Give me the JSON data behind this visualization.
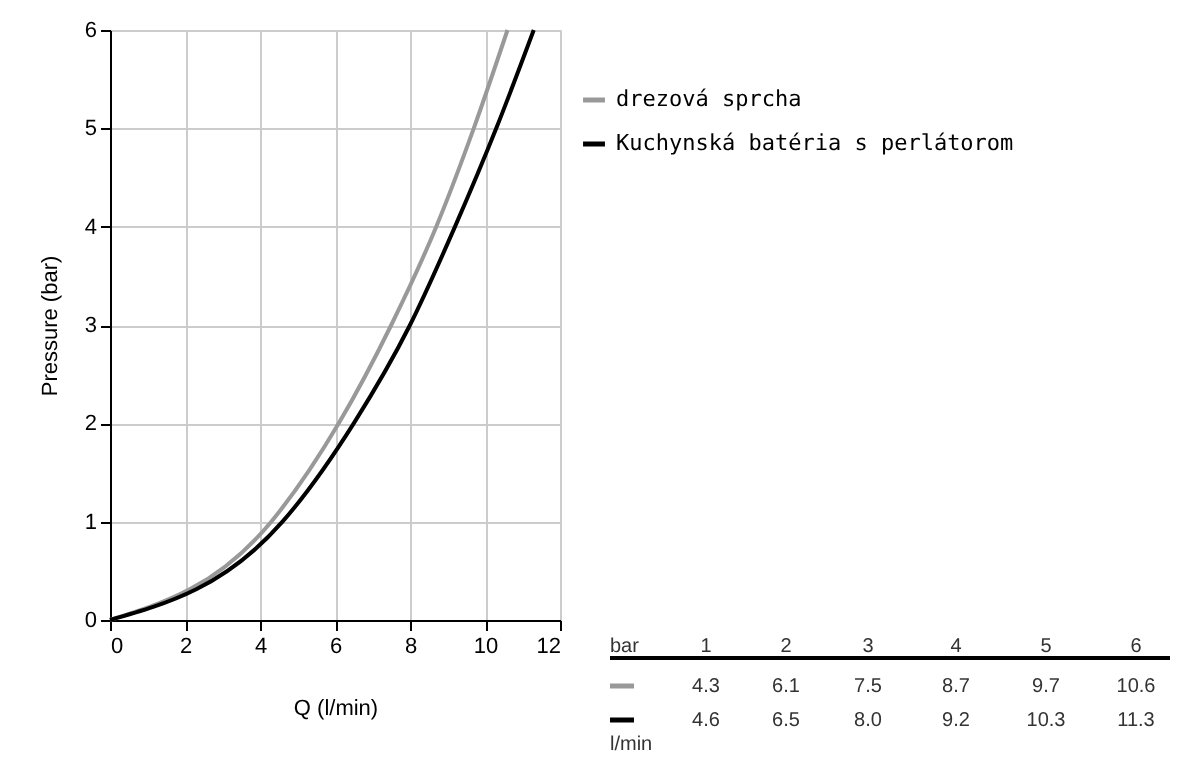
{
  "chart_data": {
    "type": "line",
    "xlabel": "Q (l/min)",
    "ylabel": "Pressure (bar)",
    "xlim": [
      0,
      12
    ],
    "ylim": [
      0,
      6
    ],
    "xticks": [
      0,
      2,
      4,
      6,
      8,
      10,
      12
    ],
    "yticks": [
      0,
      1,
      2,
      3,
      4,
      5,
      6
    ],
    "grid": true,
    "legend": "top right",
    "line_style": "solid",
    "marker": "none",
    "annotations": [
      "bar",
      "1",
      "2",
      "3",
      "4",
      "5",
      "6",
      "4.3",
      "6.1",
      "7.5",
      "8.7",
      "9.7",
      "10.6",
      "4.6",
      "6.5",
      "8.0",
      "9.2",
      "10.3",
      "11.3",
      "l/min"
    ],
    "series": [
      {
        "name": "drezová sprcha",
        "color": "#999999",
        "x": [
          0,
          4.3,
          6.1,
          7.5,
          8.7,
          9.7,
          10.6
        ],
        "values": [
          0,
          1,
          2,
          3,
          4,
          5,
          6
        ]
      },
      {
        "name": "Kuchynská batéria s perlátorom",
        "color": "#000000",
        "x": [
          0,
          4.6,
          6.5,
          8.0,
          9.2,
          10.3,
          11.3
        ],
        "values": [
          0,
          1,
          2,
          3,
          4,
          5,
          6
        ]
      }
    ]
  }
}
